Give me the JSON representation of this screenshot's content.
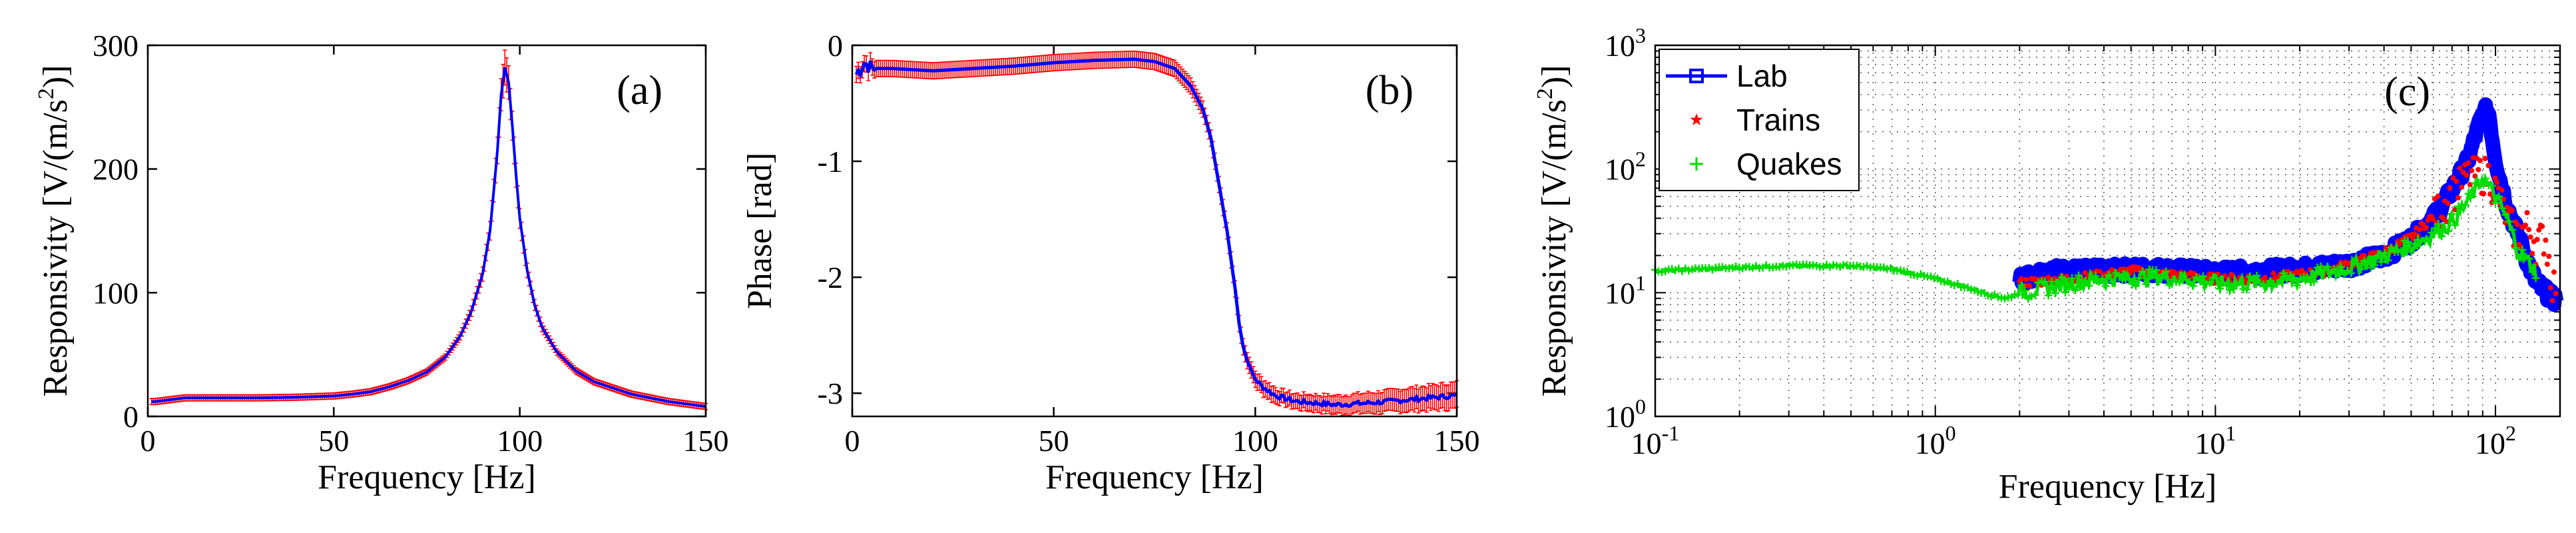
{
  "chart_data": [
    {
      "type": "line",
      "panel_label": "(a)",
      "xlabel": "Frequency [Hz]",
      "ylabel": "Responsivity [V/(m/s^2)]",
      "ylabel_main": "Responsivity [V/(m/s",
      "ylabel_sup": "2",
      "ylabel_close": ")]",
      "xlim": [
        0,
        150
      ],
      "ylim": [
        0,
        300
      ],
      "xticks": [
        0,
        50,
        100,
        150
      ],
      "yticks": [
        0,
        100,
        200,
        300
      ],
      "xtick_labels": [
        "0",
        "50",
        "100",
        "150"
      ],
      "ytick_labels": [
        "0",
        "100",
        "200",
        "300"
      ],
      "series": [
        {
          "name": "Responsivity",
          "color": "#0000ff",
          "x": [
            2,
            10,
            20,
            30,
            40,
            50,
            55,
            60,
            65,
            70,
            75,
            80,
            84,
            87,
            90,
            92,
            94,
            95,
            96,
            97,
            98,
            99,
            100,
            102,
            104,
            106,
            110,
            115,
            120,
            130,
            140,
            150
          ],
          "y": [
            12,
            15,
            15,
            15,
            15.5,
            16.5,
            18,
            20,
            24,
            29,
            36,
            48,
            65,
            85,
            115,
            150,
            215,
            260,
            282,
            270,
            235,
            195,
            160,
            118,
            90,
            72,
            52,
            37,
            28,
            18,
            12,
            8
          ]
        },
        {
          "name": "Error bars",
          "color": "#ff0000"
        }
      ]
    },
    {
      "type": "line",
      "panel_label": "(b)",
      "xlabel": "Frequency [Hz]",
      "ylabel": "Phase [rad]",
      "xlim": [
        0,
        150
      ],
      "ylim": [
        -3.2,
        0
      ],
      "xticks": [
        0,
        50,
        100,
        150
      ],
      "yticks": [
        0,
        -1,
        -2,
        -3
      ],
      "xtick_labels": [
        "0",
        "50",
        "100",
        "150"
      ],
      "ytick_labels": [
        "0",
        "-1",
        "-2",
        "-3"
      ],
      "series": [
        {
          "name": "Phase",
          "color": "#0000ff",
          "x": [
            1,
            3,
            5,
            10,
            20,
            30,
            40,
            50,
            60,
            70,
            75,
            80,
            84,
            87,
            89,
            91,
            93,
            94,
            95,
            96,
            97,
            98,
            99,
            100,
            102,
            105,
            110,
            120,
            130,
            140,
            150
          ],
          "y": [
            -0.25,
            -0.15,
            -0.2,
            -0.2,
            -0.22,
            -0.2,
            -0.18,
            -0.15,
            -0.13,
            -0.12,
            -0.14,
            -0.2,
            -0.35,
            -0.55,
            -0.8,
            -1.2,
            -1.6,
            -1.85,
            -2.1,
            -2.4,
            -2.6,
            -2.72,
            -2.8,
            -2.88,
            -2.95,
            -3.02,
            -3.07,
            -3.1,
            -3.08,
            -3.05,
            -3.02
          ]
        },
        {
          "name": "Error bars",
          "color": "#ff0000"
        }
      ]
    },
    {
      "type": "line",
      "panel_label": "(c)",
      "xlabel": "Frequency [Hz]",
      "ylabel": "Responsivity [V/(m/s^2)]",
      "ylabel_main": "Responsivity [V/(m/s",
      "ylabel_sup": "2",
      "ylabel_close": ")]",
      "xscale": "log",
      "yscale": "log",
      "xlim": [
        0.1,
        170
      ],
      "ylim": [
        1,
        1000
      ],
      "xtick_bases": [
        "10",
        "10",
        "10",
        "10"
      ],
      "xtick_exps": [
        "-1",
        "0",
        "1",
        "2"
      ],
      "ytick_bases": [
        "10",
        "10",
        "10",
        "10"
      ],
      "ytick_exps": [
        "0",
        "1",
        "2",
        "3"
      ],
      "grid": "dotted",
      "legend_position": "top-left",
      "series": [
        {
          "name": "Lab",
          "color": "#0000ff",
          "marker": "square",
          "x": [
            2,
            2.5,
            3,
            4,
            5,
            6,
            8,
            10,
            15,
            20,
            30,
            40,
            50,
            60,
            70,
            80,
            85,
            90,
            93,
            95,
            97,
            100,
            105,
            110,
            120,
            130,
            140,
            160
          ],
          "y": [
            13,
            15,
            15,
            15,
            15.5,
            15.5,
            15,
            14.5,
            15,
            15.5,
            17,
            20,
            27,
            40,
            68,
            120,
            190,
            280,
            300,
            280,
            190,
            120,
            75,
            50,
            30,
            18,
            12,
            9
          ]
        },
        {
          "name": "Trains",
          "color": "#ff0000",
          "marker": "star",
          "x": [
            2,
            3,
            4,
            5,
            7,
            10,
            15,
            20,
            25,
            30,
            40,
            50,
            60,
            70,
            80,
            90,
            95,
            100,
            105,
            110,
            120,
            130,
            140,
            150,
            160
          ],
          "y": [
            12,
            13,
            14,
            15,
            14,
            13,
            13,
            14,
            15,
            17,
            21,
            28,
            42,
            65,
            90,
            95,
            90,
            70,
            55,
            40,
            30,
            35,
            25,
            30,
            12
          ]
        },
        {
          "name": "Quakes",
          "color": "#00dd00",
          "marker": "plus",
          "x": [
            0.1,
            0.2,
            0.3,
            0.5,
            0.7,
            1.0,
            1.3,
            1.6,
            1.8,
            2.0,
            2.5,
            3,
            4,
            6,
            8,
            10,
            15,
            20,
            30,
            40,
            50,
            60,
            70,
            80,
            90,
            100,
            110,
            120,
            140
          ],
          "y": [
            15,
            16,
            16.5,
            16.5,
            15.5,
            13,
            11,
            9.5,
            9,
            10,
            11,
            12,
            13,
            13.5,
            13,
            12,
            12,
            13,
            16,
            20,
            24,
            30,
            38,
            55,
            85,
            60,
            40,
            22,
            15
          ]
        }
      ]
    }
  ]
}
